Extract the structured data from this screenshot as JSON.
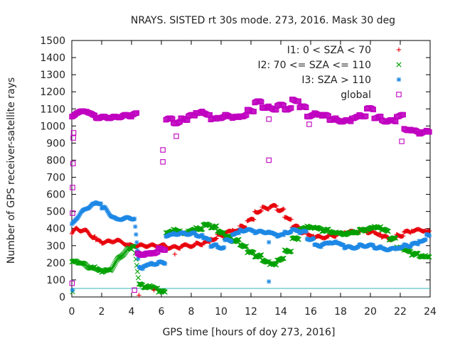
{
  "chart_data": {
    "type": "scatter",
    "title": "NRAYS. SISTED rt 30s mode. 273, 2016. Mask 30 deg",
    "xlabel": "GPS time [hours of doy 273, 2016]",
    "ylabel": "Number of GPS receiver-satellite rays",
    "xlim": [
      0,
      24
    ],
    "ylim": [
      0,
      1500
    ],
    "xticks": [
      0,
      2,
      4,
      6,
      8,
      10,
      12,
      14,
      16,
      18,
      20,
      22,
      24
    ],
    "yticks": [
      0,
      100,
      200,
      300,
      400,
      500,
      600,
      700,
      800,
      900,
      1000,
      1100,
      1200,
      1300,
      1400,
      1500
    ],
    "grid": false,
    "legend_position": "top-right",
    "threshold_line": {
      "y": 50,
      "color": "#33b3b3"
    },
    "series": [
      {
        "name": "I1: 0 < SZA < 70",
        "marker": "plus",
        "color": "#e8000b",
        "x": [
          0.0,
          0.3,
          0.6,
          1.0,
          1.4,
          1.8,
          2.2,
          2.6,
          3.0,
          3.4,
          3.8,
          4.2,
          6.0,
          6.5,
          7.0,
          7.5,
          8.0,
          8.5,
          9.0,
          9.5,
          10.0,
          10.5,
          11.0,
          11.5,
          12.0,
          12.5,
          13.0,
          13.5,
          14.0,
          14.5,
          15.0,
          15.5,
          16.0,
          16.5,
          17.0,
          17.5,
          18.0,
          18.5,
          19.0,
          19.5,
          20.0,
          20.5,
          21.0,
          21.5,
          22.0,
          22.5,
          23.0,
          23.5,
          24.0
        ],
        "values": [
          370,
          400,
          390,
          385,
          350,
          330,
          320,
          325,
          330,
          320,
          300,
          300,
          300,
          290,
          290,
          300,
          300,
          310,
          320,
          340,
          360,
          380,
          390,
          410,
          450,
          500,
          520,
          530,
          510,
          460,
          410,
          380,
          360,
          350,
          350,
          360,
          370,
          380,
          380,
          390,
          380,
          370,
          350,
          340,
          360,
          380,
          390,
          390,
          380
        ]
      },
      {
        "name": "I2: 70 <= SZA <= 110",
        "marker": "cross",
        "color": "#00a000",
        "x": [
          0.0,
          0.3,
          0.6,
          1.0,
          1.4,
          1.8,
          2.2,
          2.6,
          3.0,
          3.4,
          3.8,
          4.2,
          4.5,
          5.0,
          5.5,
          6.0,
          6.5,
          7.0,
          7.5,
          8.0,
          8.5,
          9.0,
          9.5,
          10.0,
          10.5,
          11.0,
          11.5,
          12.0,
          12.5,
          13.0,
          13.5,
          14.0,
          14.5,
          15.0,
          15.5,
          16.0,
          16.5,
          17.0,
          17.5,
          18.0,
          18.5,
          19.0,
          19.5,
          20.0,
          20.5,
          21.0,
          21.5,
          22.0,
          22.5,
          23.0,
          23.5,
          24.0
        ],
        "values": [
          200,
          210,
          200,
          180,
          170,
          160,
          150,
          160,
          210,
          250,
          280,
          300,
          70,
          60,
          55,
          30,
          380,
          390,
          370,
          390,
          400,
          420,
          410,
          380,
          350,
          330,
          300,
          260,
          240,
          210,
          190,
          220,
          270,
          340,
          400,
          410,
          400,
          390,
          380,
          370,
          370,
          380,
          390,
          400,
          410,
          390,
          340,
          290,
          270,
          250,
          240,
          230
        ]
      },
      {
        "name": "I3: SZA > 110",
        "marker": "star",
        "color": "#1e88e5",
        "x": [
          0.0,
          0.3,
          0.6,
          1.0,
          1.4,
          1.8,
          2.2,
          2.6,
          3.0,
          3.4,
          3.8,
          4.2,
          4.5,
          5.0,
          5.5,
          6.0,
          6.5,
          7.0,
          7.5,
          8.0,
          8.5,
          9.0,
          9.5,
          10.0,
          10.5,
          11.0,
          11.5,
          12.0,
          12.5,
          13.0,
          13.5,
          14.0,
          14.5,
          15.0,
          15.5,
          16.0,
          16.5,
          17.0,
          17.5,
          18.0,
          18.5,
          19.0,
          19.5,
          20.0,
          20.5,
          21.0,
          21.5,
          22.0,
          22.5,
          23.0,
          23.5,
          24.0
        ],
        "values": [
          420,
          460,
          490,
          520,
          540,
          550,
          520,
          480,
          450,
          460,
          460,
          460,
          170,
          185,
          195,
          200,
          360,
          370,
          370,
          370,
          360,
          340,
          300,
          290,
          330,
          370,
          390,
          390,
          380,
          380,
          370,
          360,
          380,
          390,
          380,
          340,
          300,
          310,
          320,
          310,
          290,
          290,
          300,
          300,
          290,
          280,
          280,
          290,
          300,
          310,
          330,
          360
        ]
      },
      {
        "name": "global",
        "marker": "square",
        "color": "#c000c0",
        "x": [
          0.0,
          0.3,
          0.6,
          1.0,
          1.4,
          1.8,
          2.2,
          2.6,
          3.0,
          3.4,
          3.8,
          4.2,
          4.5,
          5.0,
          5.5,
          6.0,
          6.5,
          7.0,
          7.5,
          8.0,
          8.5,
          9.0,
          9.5,
          10.0,
          10.5,
          11.0,
          11.5,
          12.0,
          12.5,
          13.0,
          13.5,
          14.0,
          14.5,
          15.0,
          15.5,
          16.0,
          16.5,
          17.0,
          17.5,
          18.0,
          18.5,
          19.0,
          19.5,
          20.0,
          20.5,
          21.0,
          21.5,
          22.0,
          22.5,
          23.0,
          23.5,
          24.0
        ],
        "values": [
          1050,
          1080,
          1080,
          1090,
          1060,
          1050,
          1050,
          1050,
          1050,
          1060,
          1060,
          1070,
          250,
          250,
          260,
          280,
          1040,
          1020,
          1040,
          1060,
          1080,
          1070,
          1040,
          1050,
          1060,
          1050,
          1060,
          1090,
          1140,
          1110,
          1100,
          1120,
          1100,
          1150,
          1110,
          1060,
          1070,
          1060,
          1040,
          1030,
          1030,
          1050,
          1060,
          1100,
          1050,
          1030,
          1030,
          1060,
          980,
          970,
          960,
          970
        ]
      }
    ],
    "outlier_points": [
      {
        "series": "I1: 0 < SZA < 70",
        "x": 4.5,
        "y": 10
      },
      {
        "series": "I1: 0 < SZA < 70",
        "x": 5.5,
        "y": 40
      },
      {
        "series": "I1: 0 < SZA < 70",
        "x": 6.9,
        "y": 250
      },
      {
        "series": "I2: 70 <= SZA <= 110",
        "x": 0.05,
        "y": 30
      },
      {
        "series": "I3: SZA > 110",
        "x": 0.05,
        "y": 40
      },
      {
        "series": "I3: SZA > 110",
        "x": 13.2,
        "y": 90
      },
      {
        "series": "I3: SZA > 110",
        "x": 13.2,
        "y": 320
      },
      {
        "series": "global",
        "x": 0.02,
        "y": 80
      },
      {
        "series": "global",
        "x": 0.05,
        "y": 490
      },
      {
        "series": "global",
        "x": 0.05,
        "y": 640
      },
      {
        "series": "global",
        "x": 0.08,
        "y": 780
      },
      {
        "series": "global",
        "x": 0.1,
        "y": 930
      },
      {
        "series": "global",
        "x": 0.12,
        "y": 960
      },
      {
        "series": "global",
        "x": 4.2,
        "y": 40
      },
      {
        "series": "global",
        "x": 6.1,
        "y": 860
      },
      {
        "series": "global",
        "x": 6.1,
        "y": 790
      },
      {
        "series": "global",
        "x": 7.0,
        "y": 940
      },
      {
        "series": "global",
        "x": 13.2,
        "y": 800
      },
      {
        "series": "global",
        "x": 13.2,
        "y": 1040
      },
      {
        "series": "global",
        "x": 15.9,
        "y": 1010
      },
      {
        "series": "global",
        "x": 22.1,
        "y": 910
      }
    ]
  }
}
